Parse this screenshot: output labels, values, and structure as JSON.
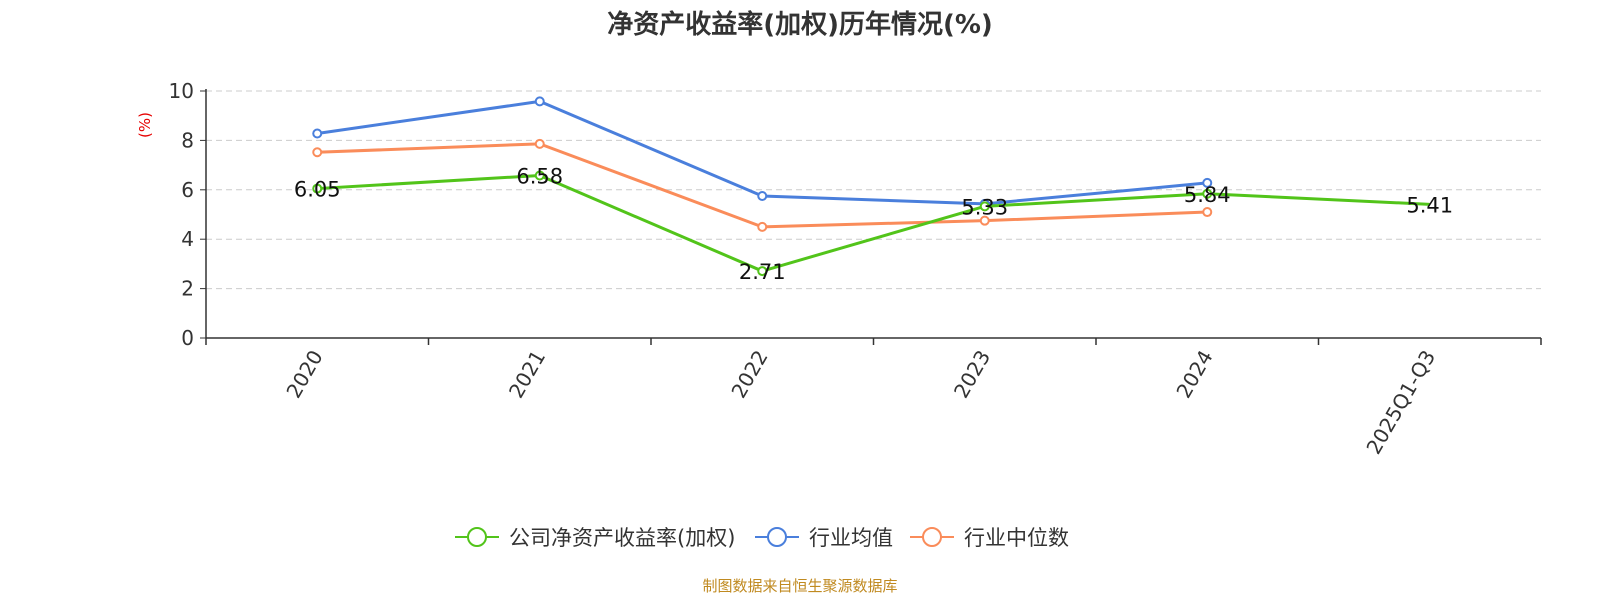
{
  "chart_data": {
    "type": "line",
    "title": "净资产收益率(加权)历年情况(%)",
    "ylabel": "(%)",
    "xlabel": "",
    "categories": [
      "2020",
      "2021",
      "2022",
      "2023",
      "2024",
      "2025Q1-Q3"
    ],
    "ylim": [
      0,
      10
    ],
    "yticks": [
      0,
      2,
      4,
      6,
      8,
      10
    ],
    "grid": true,
    "legend_position": "bottom-center",
    "series": [
      {
        "name": "公司净资产收益率(加权)",
        "color": "#52c41a",
        "values": [
          6.05,
          6.58,
          2.71,
          5.33,
          5.84,
          5.41
        ],
        "labels": [
          "6.05",
          "6.58",
          "2.71",
          "5.33",
          "5.84",
          "5.41"
        ]
      },
      {
        "name": "行业均值",
        "color": "#4a7fdc",
        "values": [
          8.28,
          9.58,
          5.75,
          5.43,
          6.28,
          null
        ]
      },
      {
        "name": "行业中位数",
        "color": "#fa8c5a",
        "values": [
          7.52,
          7.86,
          4.5,
          4.75,
          5.1,
          null
        ]
      }
    ]
  },
  "source": "制图数据来自恒生聚源数据库"
}
